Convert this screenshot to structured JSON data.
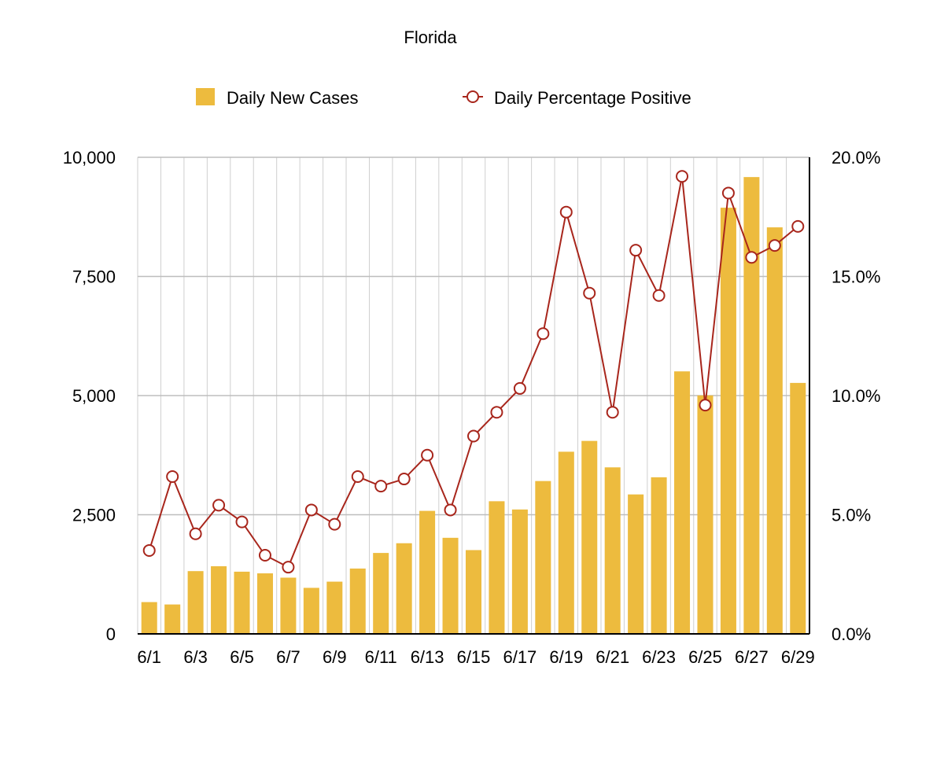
{
  "chart_data": {
    "type": "bar",
    "title": "Florida",
    "legend": {
      "placement": "top-center",
      "items": [
        {
          "label": "Daily New Cases",
          "marker": "bar-swatch"
        },
        {
          "label": "Daily Percentage Positive",
          "marker": "line-circle"
        }
      ]
    },
    "x": [
      "6/1",
      "6/2",
      "6/3",
      "6/4",
      "6/5",
      "6/6",
      "6/7",
      "6/8",
      "6/9",
      "6/10",
      "6/11",
      "6/12",
      "6/13",
      "6/14",
      "6/15",
      "6/16",
      "6/17",
      "6/18",
      "6/19",
      "6/20",
      "6/21",
      "6/22",
      "6/23",
      "6/24",
      "6/25",
      "6/26",
      "6/27",
      "6/28",
      "6/29"
    ],
    "x_tick_labels": [
      "6/1",
      "",
      "6/3",
      "",
      "6/5",
      "",
      "6/7",
      "",
      "6/9",
      "",
      "6/11",
      "",
      "6/13",
      "",
      "6/15",
      "",
      "6/17",
      "",
      "6/19",
      "",
      "6/21",
      "",
      "6/23",
      "",
      "6/25",
      "",
      "6/27",
      "",
      "6/29"
    ],
    "series": [
      {
        "name": "Daily New Cases",
        "type": "bar",
        "axis": "left",
        "color": "#EDBB3E",
        "values": [
          667,
          617,
          1317,
          1419,
          1305,
          1270,
          1180,
          966,
          1096,
          1371,
          1698,
          1902,
          2581,
          2016,
          1758,
          2783,
          2610,
          3207,
          3822,
          4049,
          3494,
          2926,
          3286,
          5508,
          5004,
          8942,
          9585,
          8530,
          5266
        ]
      },
      {
        "name": "Daily Percentage Positive",
        "type": "line",
        "axis": "right",
        "color": "#A8261C",
        "values": [
          3.5,
          6.6,
          4.2,
          5.4,
          4.7,
          3.3,
          2.8,
          5.2,
          4.6,
          6.6,
          6.2,
          6.5,
          7.5,
          5.2,
          8.3,
          9.3,
          10.3,
          12.6,
          17.7,
          14.3,
          9.3,
          16.1,
          14.2,
          19.2,
          9.6,
          18.5,
          15.8,
          16.3,
          17.1
        ]
      }
    ],
    "y_left": {
      "ylim": [
        0,
        10000
      ],
      "ticks": [
        0,
        2500,
        5000,
        7500,
        10000
      ],
      "tick_labels": [
        "0",
        "2,500",
        "5,000",
        "7,500",
        "10,000"
      ]
    },
    "y_right": {
      "ylim": [
        0,
        20
      ],
      "ticks": [
        0,
        5,
        10,
        15,
        20
      ],
      "tick_labels": [
        "0.0%",
        "5.0%",
        "10.0%",
        "15.0%",
        "20.0%"
      ]
    },
    "grid": {
      "horizontal": true,
      "vertical": true
    },
    "colors": {
      "bar": "#EDBB3E",
      "line": "#A8261C",
      "grid_major": "#BDBDBD",
      "grid_minor": "#CFCFCF",
      "axis": "#000000"
    }
  }
}
